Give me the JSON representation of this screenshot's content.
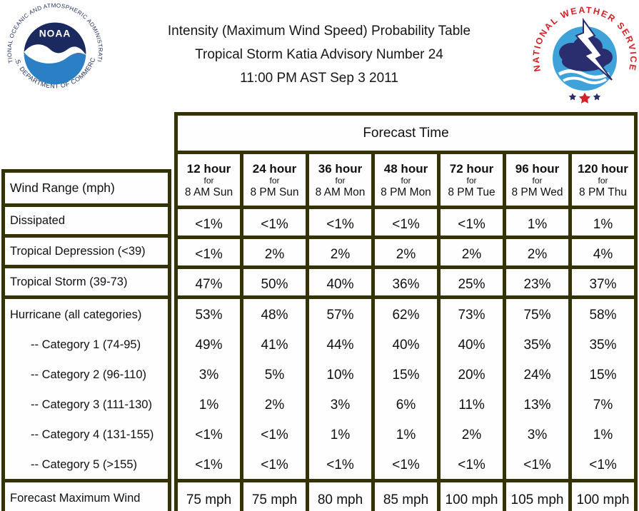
{
  "header": {
    "title_lines": [
      "Intensity (Maximum Wind Speed) Probability Table",
      "Tropical Storm Katia Advisory Number 24",
      "11:00 PM AST Sep 3 2011"
    ],
    "noaa_logo": {
      "top_text": "NATIONAL OCEANIC AND ATMOSPHERIC ADMINISTRATION",
      "bottom_text": "U.S. DEPARTMENT OF COMMERCE",
      "center_text": "NOAA"
    },
    "nws_logo": {
      "arc_text": "NATIONAL WEATHER SERVICE"
    }
  },
  "table": {
    "forecast_time_label": "Forecast Time",
    "wind_range_label": "Wind Range (mph)",
    "columns": [
      {
        "hour": "12 hour",
        "for_text": "for",
        "valid": "8 AM Sun"
      },
      {
        "hour": "24 hour",
        "for_text": "for",
        "valid": "8 PM Sun"
      },
      {
        "hour": "36 hour",
        "for_text": "for",
        "valid": "8 AM Mon"
      },
      {
        "hour": "48 hour",
        "for_text": "for",
        "valid": "8 PM Mon"
      },
      {
        "hour": "72 hour",
        "for_text": "for",
        "valid": "8 PM Tue"
      },
      {
        "hour": "96 hour",
        "for_text": "for",
        "valid": "8 PM Wed"
      },
      {
        "hour": "120 hour",
        "for_text": "for",
        "valid": "8 PM Thu"
      }
    ],
    "rows": [
      {
        "label": "Dissipated",
        "values": [
          "<1%",
          "<1%",
          "<1%",
          "<1%",
          "<1%",
          "1%",
          "1%"
        ]
      },
      {
        "label": "Tropical Depression (<39)",
        "values": [
          "<1%",
          "2%",
          "2%",
          "2%",
          "2%",
          "2%",
          "4%"
        ]
      },
      {
        "label": "Tropical Storm (39-73)",
        "values": [
          "47%",
          "50%",
          "40%",
          "36%",
          "25%",
          "23%",
          "37%"
        ]
      }
    ],
    "hurricane_block": {
      "rows": [
        {
          "label": "Hurricane (all categories)",
          "indent": false,
          "values": [
            "53%",
            "48%",
            "57%",
            "62%",
            "73%",
            "75%",
            "58%"
          ]
        },
        {
          "label": "-- Category 1 (74-95)",
          "indent": true,
          "values": [
            "49%",
            "41%",
            "44%",
            "40%",
            "40%",
            "35%",
            "35%"
          ]
        },
        {
          "label": "-- Category 2 (96-110)",
          "indent": true,
          "values": [
            "3%",
            "5%",
            "10%",
            "15%",
            "20%",
            "24%",
            "15%"
          ]
        },
        {
          "label": "-- Category 3 (111-130)",
          "indent": true,
          "values": [
            "1%",
            "2%",
            "3%",
            "6%",
            "11%",
            "13%",
            "7%"
          ]
        },
        {
          "label": "-- Category 4 (131-155)",
          "indent": true,
          "values": [
            "<1%",
            "<1%",
            "1%",
            "1%",
            "2%",
            "3%",
            "1%"
          ]
        },
        {
          "label": "-- Category 5 (>155)",
          "indent": true,
          "values": [
            "<1%",
            "<1%",
            "<1%",
            "<1%",
            "<1%",
            "<1%",
            "<1%"
          ]
        }
      ]
    },
    "footer_row": {
      "label": "Forecast Maximum Wind",
      "values": [
        "75 mph",
        "75 mph",
        "80 mph",
        "85 mph",
        "100 mph",
        "105 mph",
        "100 mph"
      ]
    }
  },
  "colors": {
    "table_border": "#333305",
    "cell_background": "#fefefe",
    "text": "#111111",
    "noaa_navy": "#1b2a5e",
    "noaa_light_blue": "#2b7fc4",
    "nws_red": "#d42127",
    "nws_light_blue": "#3fa2d8",
    "nws_navy": "#2a2d6e"
  }
}
